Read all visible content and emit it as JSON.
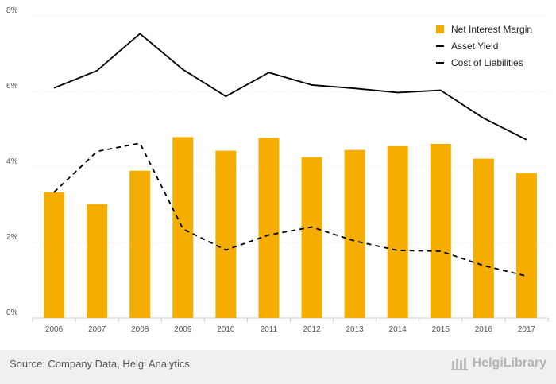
{
  "chart_data": {
    "type": "bar",
    "categories": [
      "2006",
      "2007",
      "2008",
      "2009",
      "2010",
      "2011",
      "2012",
      "2013",
      "2014",
      "2015",
      "2016",
      "2017"
    ],
    "series": [
      {
        "name": "Net Interest Margin",
        "type": "bar",
        "color": "#f5ad00",
        "values": [
          3.33,
          3.02,
          3.9,
          4.79,
          4.43,
          4.77,
          4.26,
          4.45,
          4.55,
          4.61,
          4.22,
          3.84
        ]
      },
      {
        "name": "Asset Yield",
        "type": "line",
        "style": "solid",
        "color": "#000000",
        "values": [
          6.09,
          6.55,
          7.53,
          6.58,
          5.87,
          6.5,
          6.17,
          6.08,
          5.97,
          6.03,
          5.29,
          4.72
        ]
      },
      {
        "name": "Cost of Liabilities",
        "type": "line",
        "style": "dashed",
        "color": "#000000",
        "values": [
          3.33,
          4.41,
          4.63,
          2.36,
          1.8,
          2.2,
          2.41,
          2.04,
          1.79,
          1.77,
          1.39,
          1.11
        ]
      }
    ],
    "y_ticks": [
      "0%",
      "2%",
      "4%",
      "6%",
      "8%"
    ],
    "ylim": [
      0,
      8
    ],
    "grid": true,
    "legend_position": "top-right",
    "xlabel": "",
    "ylabel": ""
  },
  "footer": {
    "source": "Source: Company Data, Helgi Analytics",
    "logo_text": "HelgiLibrary"
  }
}
